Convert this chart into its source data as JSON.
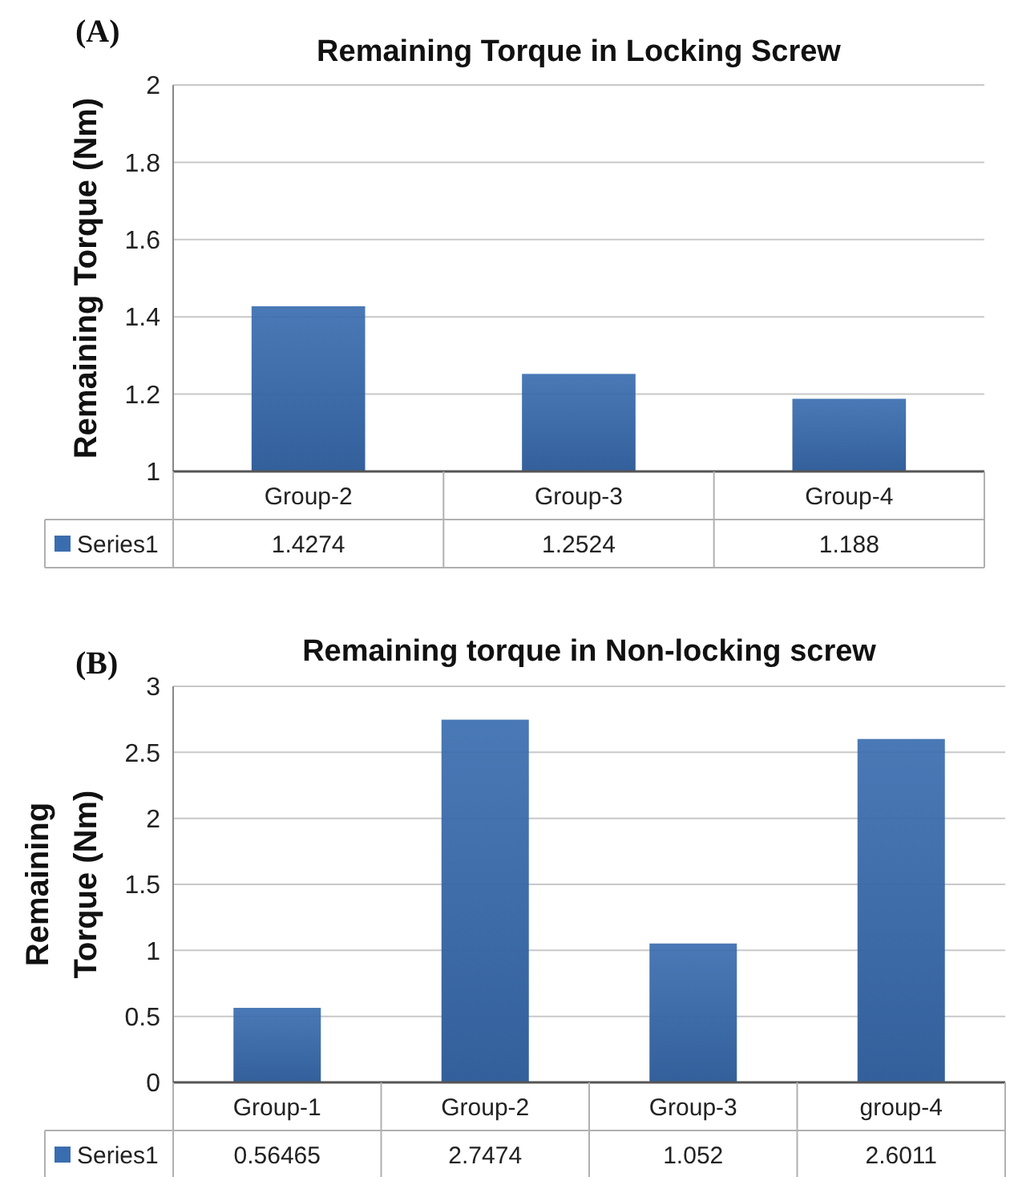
{
  "chart_data": [
    {
      "type": "bar",
      "title": "Remaining Torque in Locking Screw",
      "ylabel": "Remaining Torque (Nm)",
      "annotations": [
        "(A)"
      ],
      "categories": [
        "Group-2",
        "Group-3",
        "Group-4"
      ],
      "series": [
        {
          "name": "Series1",
          "color": "#3a6db0",
          "values": [
            1.4274,
            1.2524,
            1.188
          ]
        }
      ],
      "ylim": [
        1,
        2
      ],
      "yticks": [
        1,
        1.2,
        1.4,
        1.6,
        1.8,
        2
      ],
      "grid": "y",
      "data_labels": true,
      "legend": "bottom left"
    },
    {
      "type": "bar",
      "title": "Remaining torque in Non-locking screw",
      "ylabel": "Remaining Torque (Nm)",
      "annotations": [
        "(B)"
      ],
      "categories": [
        "Group-1",
        "Group-2",
        "Group-3",
        "group-4"
      ],
      "series": [
        {
          "name": "Series1",
          "color": "#3a6db0",
          "values": [
            0.56465,
            2.7474,
            1.052,
            2.6011
          ]
        }
      ],
      "ylim": [
        0,
        3
      ],
      "yticks": [
        0,
        0.5,
        1,
        1.5,
        2,
        2.5,
        3
      ],
      "grid": "y",
      "data_labels": true,
      "legend": "bottom left"
    }
  ]
}
